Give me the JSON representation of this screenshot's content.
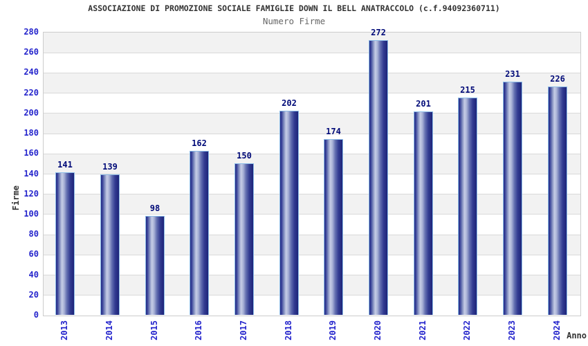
{
  "header": {
    "title": "ASSOCIAZIONE DI PROMOZIONE SOCIALE FAMIGLIE DOWN IL BELL ANATRACCOLO (c.f.94092360711)",
    "subtitle": "Numero Firme"
  },
  "chart_data": {
    "type": "bar",
    "title": "ASSOCIAZIONE DI PROMOZIONE SOCIALE FAMIGLIE DOWN IL BELL ANATRACCOLO (c.f.94092360711)",
    "subtitle": "Numero Firme",
    "categories": [
      "2013",
      "2014",
      "2015",
      "2016",
      "2017",
      "2018",
      "2019",
      "2020",
      "2021",
      "2022",
      "2023",
      "2024"
    ],
    "values": [
      141,
      139,
      98,
      162,
      150,
      202,
      174,
      272,
      201,
      215,
      231,
      226
    ],
    "xlabel": "Anno",
    "ylabel": "Firme",
    "ylim": [
      0,
      280
    ],
    "ytick_step": 20,
    "grid": true,
    "legend_position": "none",
    "bar_value_labels": true,
    "band_fill": "alternating horizontal bands every 20 units"
  },
  "colors": {
    "title_text": "#333333",
    "subtitle_text": "#666666",
    "axis_tick_text": "#2424cc",
    "bar_value_text": "#000a78",
    "axis_title_text": "#333333",
    "grid_line": "#d9d9d9",
    "plot_border": "#cccccc",
    "band_gray": "#f2f2f2",
    "band_white": "#ffffff",
    "bar_dark": "#1d2478",
    "bar_highlight": "#c6cde6",
    "bar_cap_border": "#8cbce8",
    "background": "#ffffff"
  }
}
